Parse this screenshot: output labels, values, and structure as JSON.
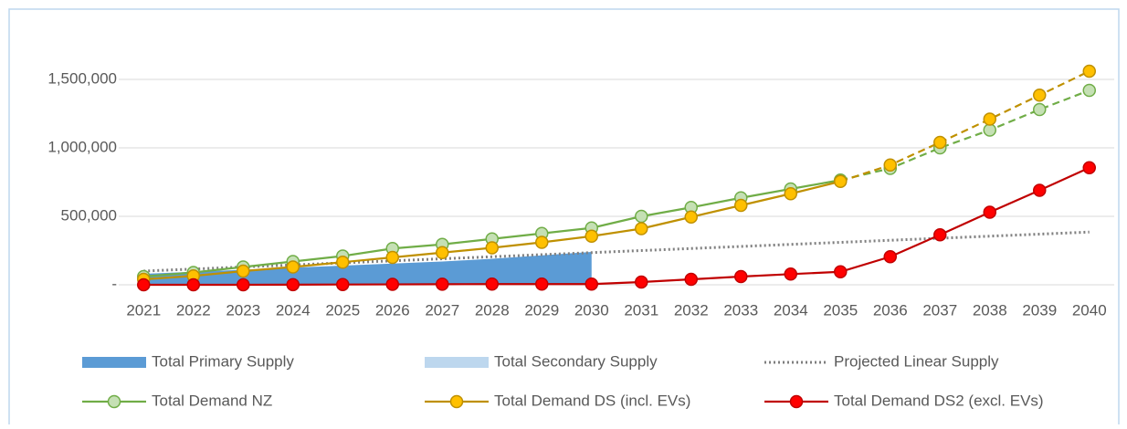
{
  "chart_data": {
    "type": "line",
    "categories": [
      "2021",
      "2022",
      "2023",
      "2024",
      "2025",
      "2026",
      "2027",
      "2028",
      "2029",
      "2030",
      "2031",
      "2032",
      "2033",
      "2034",
      "2035",
      "2036",
      "2037",
      "2038",
      "2039",
      "2040"
    ],
    "ylim": [
      0,
      1750000
    ],
    "yticks": [
      {
        "value": 0,
        "label": "-"
      },
      {
        "value": 500000,
        "label": "500,000"
      },
      {
        "value": 1000000,
        "label": "1,000,000"
      },
      {
        "value": 1500000,
        "label": "1,500,000"
      }
    ],
    "grid": true,
    "legend": "bottom",
    "series": [
      {
        "name": "Total Primary Supply",
        "kind": "area",
        "color": "#5b9bd5",
        "values": [
          80000,
          95000,
          110000,
          125000,
          140000,
          155000,
          170000,
          190000,
          215000,
          240000,
          null,
          null,
          null,
          null,
          null,
          null,
          null,
          null,
          null,
          null
        ]
      },
      {
        "name": "Total Secondary Supply",
        "kind": "area",
        "color": "#bdd7ee",
        "values": [
          null,
          null,
          null,
          null,
          null,
          null,
          null,
          null,
          null,
          null,
          null,
          null,
          null,
          null,
          null,
          null,
          null,
          null,
          null,
          null
        ]
      },
      {
        "name": "Projected Linear Supply",
        "kind": "line",
        "style": "dotted",
        "color": "#7f7f7f",
        "values": [
          100000,
          115000,
          130000,
          145000,
          160000,
          175000,
          190000,
          205000,
          220000,
          235000,
          250000,
          265000,
          280000,
          295000,
          310000,
          325000,
          340000,
          355000,
          370000,
          385000
        ]
      },
      {
        "name": "Total Demand NZ",
        "kind": "line",
        "color": "#70ad47",
        "marker_fill": "#c5e0b4",
        "dashed_from": "2035",
        "values": [
          60000,
          90000,
          130000,
          170000,
          210000,
          265000,
          295000,
          335000,
          375000,
          415000,
          500000,
          565000,
          635000,
          700000,
          765000,
          850000,
          1000000,
          1130000,
          1280000,
          1420000
        ]
      },
      {
        "name": "Total Demand DS (incl. EVs)",
        "kind": "line",
        "color": "#bf9000",
        "marker_fill": "#ffc000",
        "dashed_from": "2035",
        "values": [
          40000,
          65000,
          100000,
          130000,
          165000,
          200000,
          235000,
          270000,
          310000,
          355000,
          410000,
          495000,
          580000,
          665000,
          755000,
          875000,
          1040000,
          1210000,
          1385000,
          1560000
        ]
      },
      {
        "name": "Total Demand DS2 (excl. EVs)",
        "kind": "line",
        "color": "#c00000",
        "marker_fill": "#ff0000",
        "values": [
          0,
          0,
          0,
          1000,
          2000,
          3000,
          4000,
          5000,
          5000,
          5000,
          20000,
          40000,
          60000,
          78000,
          95000,
          205000,
          365000,
          530000,
          690000,
          855000
        ]
      }
    ]
  }
}
